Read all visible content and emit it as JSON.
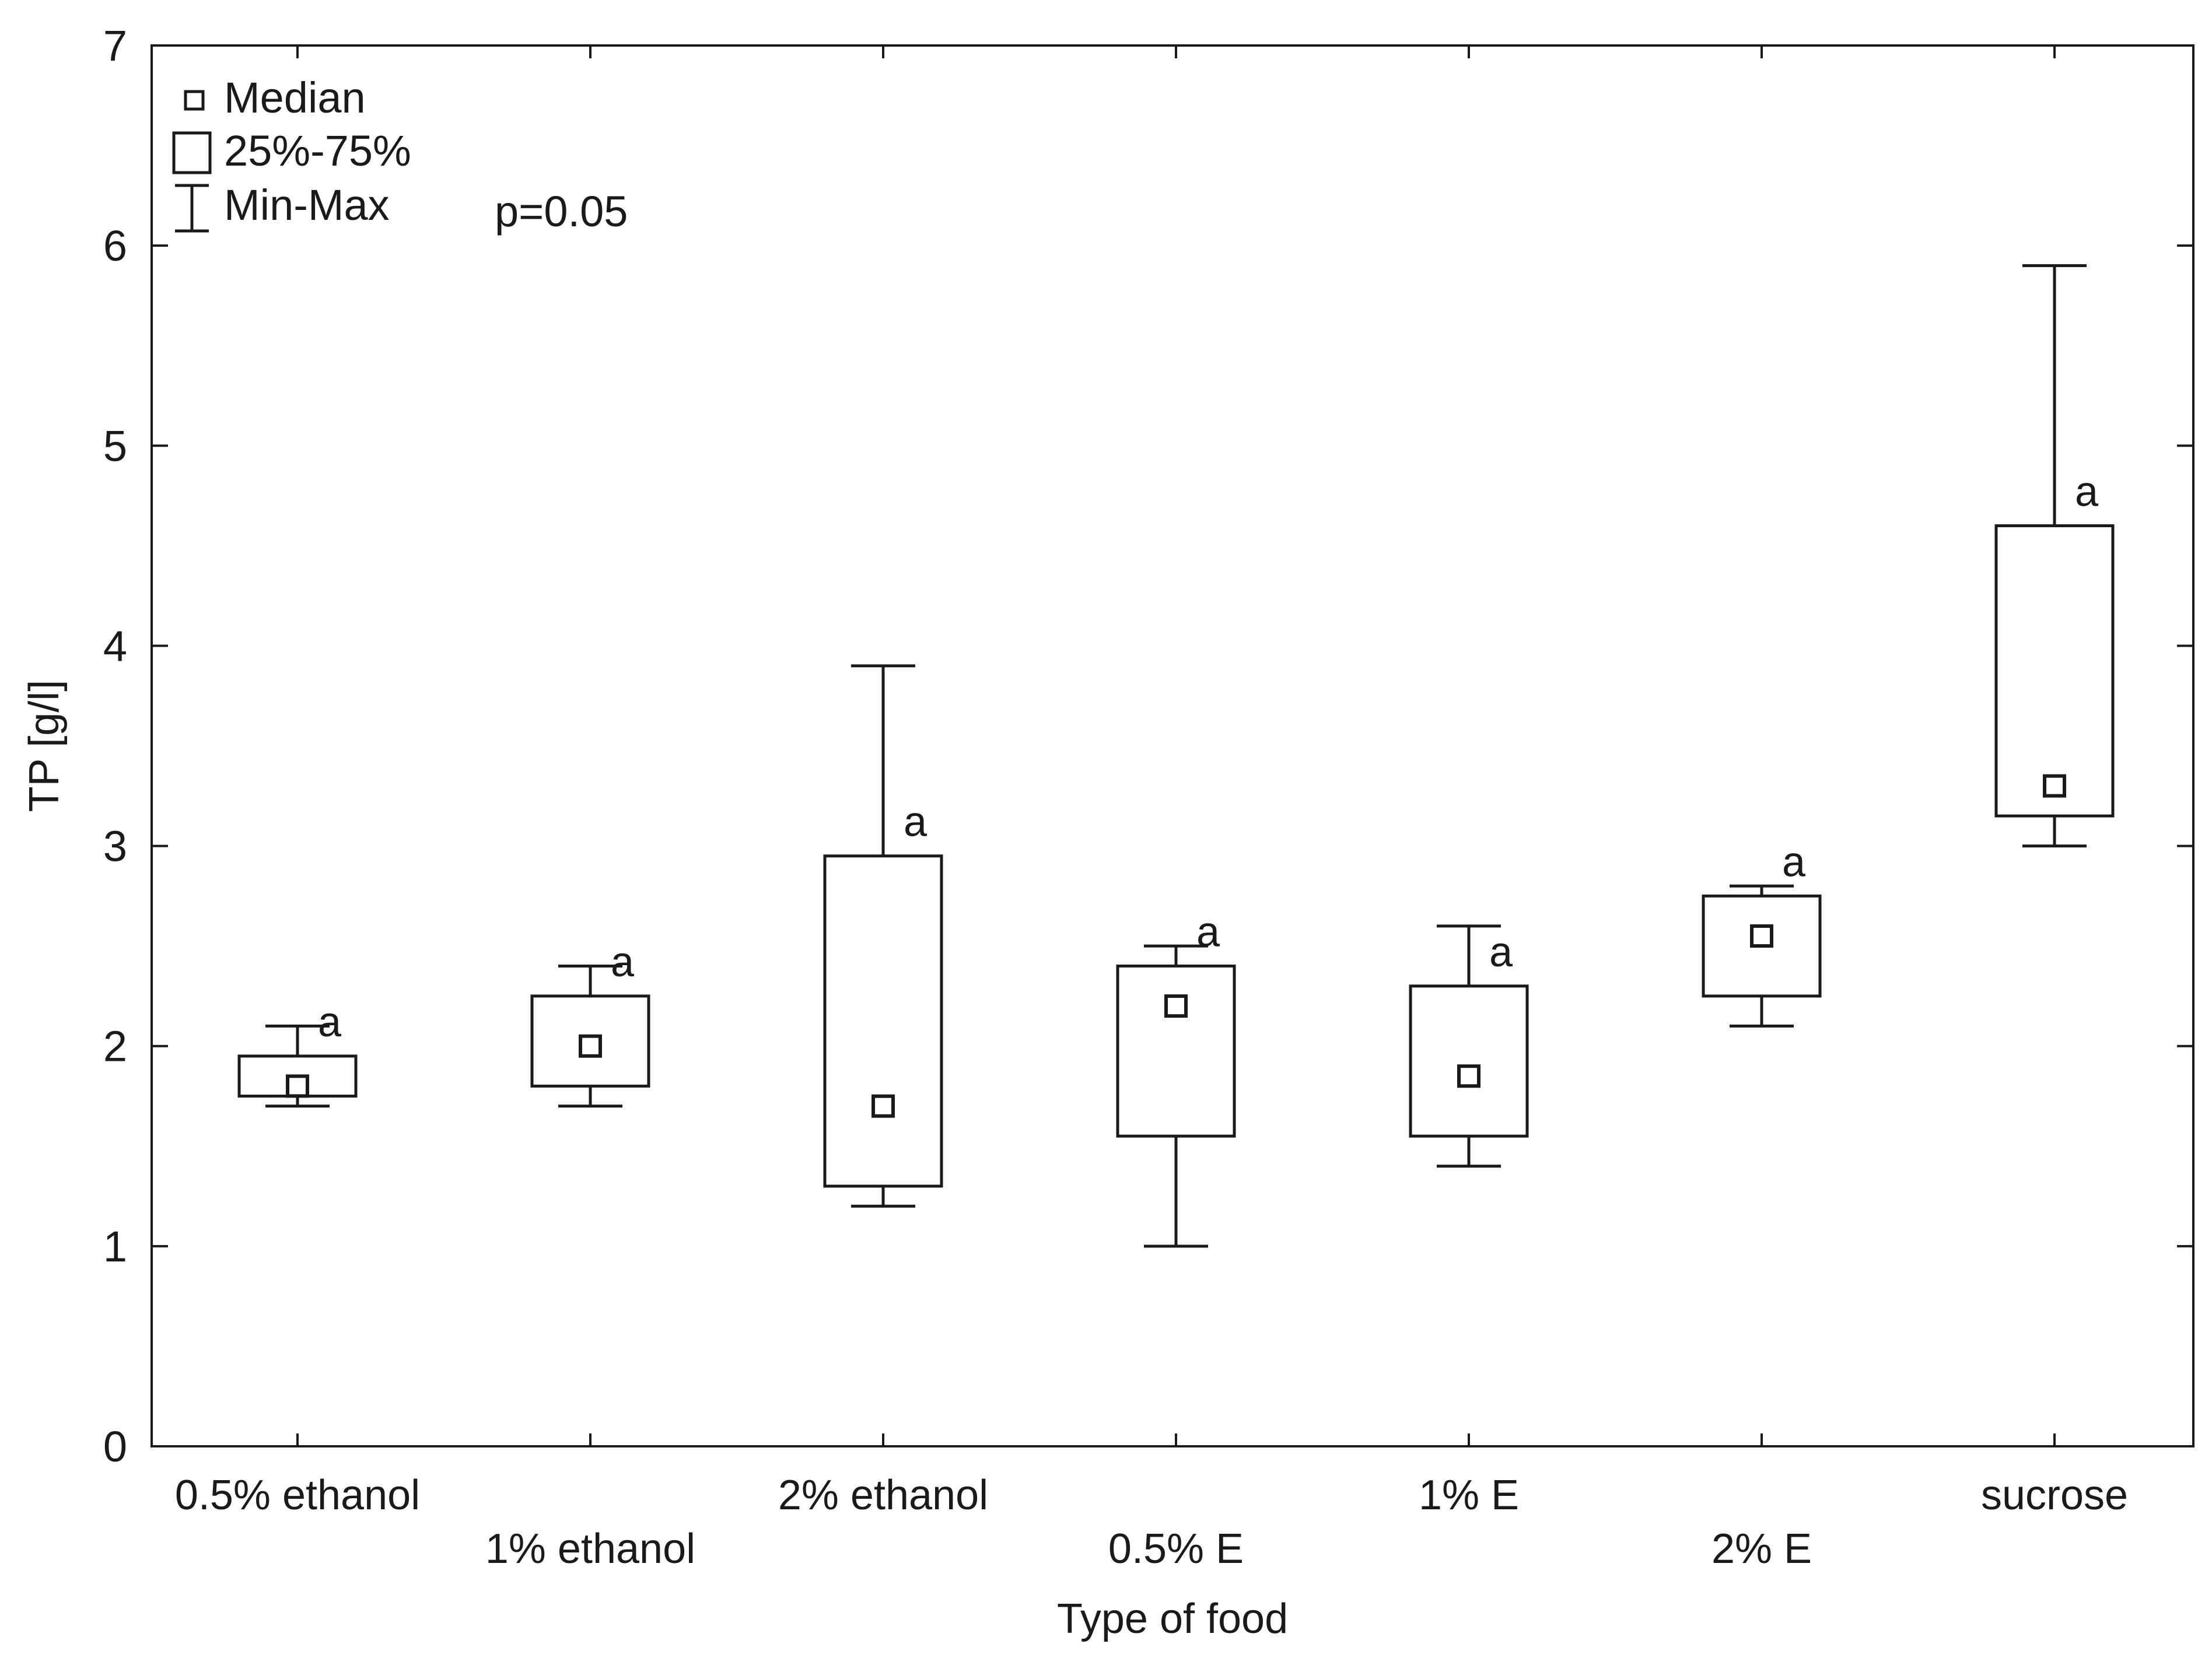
{
  "chart_data": {
    "type": "box",
    "xlabel": "Type of food",
    "ylabel": "TP [g/l]",
    "ylim": [
      0,
      7
    ],
    "yticks": [
      0,
      1,
      2,
      3,
      4,
      5,
      6,
      7
    ],
    "categories": [
      "0.5% ethanol",
      "1% ethanol",
      "2% ethanol",
      "0.5% E",
      "1% E",
      "2% E",
      "sucrose"
    ],
    "boxes": [
      {
        "category": "0.5% ethanol",
        "min": 1.7,
        "q1": 1.75,
        "median": 1.8,
        "q3": 1.95,
        "max": 2.1,
        "label": "a"
      },
      {
        "category": "1% ethanol",
        "min": 1.7,
        "q1": 1.8,
        "median": 2.0,
        "q3": 2.25,
        "max": 2.4,
        "label": "a"
      },
      {
        "category": "2% ethanol",
        "min": 1.2,
        "q1": 1.3,
        "median": 1.7,
        "q3": 2.95,
        "max": 3.9,
        "label": "a"
      },
      {
        "category": "0.5% E",
        "min": 1.0,
        "q1": 1.55,
        "median": 2.2,
        "q3": 2.4,
        "max": 2.5,
        "label": "a"
      },
      {
        "category": "1% E",
        "min": 1.4,
        "q1": 1.55,
        "median": 1.85,
        "q3": 2.3,
        "max": 2.6,
        "label": "a"
      },
      {
        "category": "2% E",
        "min": 2.1,
        "q1": 2.25,
        "median": 2.55,
        "q3": 2.75,
        "max": 2.8,
        "label": "a"
      },
      {
        "category": "sucrose",
        "min": 3.0,
        "q1": 3.15,
        "median": 3.3,
        "q3": 4.6,
        "max": 5.9,
        "label": "a"
      }
    ],
    "legend": {
      "placement": "top-left",
      "entries": [
        {
          "symbol": "median-square",
          "text": "Median"
        },
        {
          "symbol": "box",
          "text": "25%-75%"
        },
        {
          "symbol": "whisker",
          "text": "Min-Max"
        }
      ]
    },
    "annotation": "p=0.05",
    "grid": false,
    "colors": {
      "line": "#1a1a1a",
      "box_fill": "#ffffff",
      "background": "#ffffff"
    }
  }
}
